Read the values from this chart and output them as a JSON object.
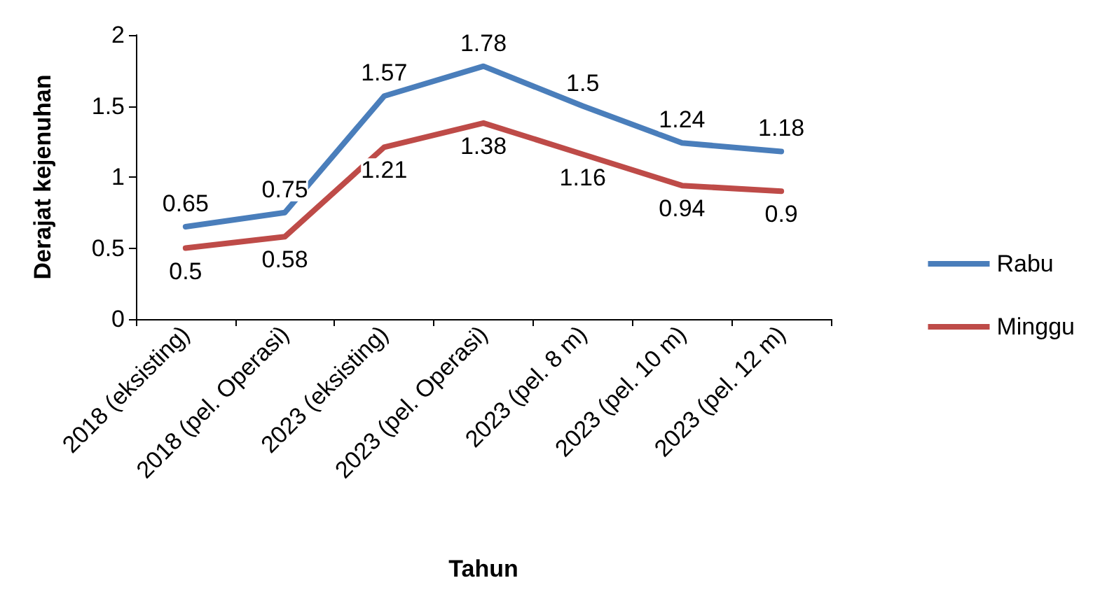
{
  "chart_data": {
    "type": "line",
    "xlabel": "Tahun",
    "ylabel": "Derajat kejenuhan",
    "categories": [
      "2018 (eksisting)",
      "2018 (pel. Operasi)",
      "2023 (eksisting)",
      "2023 (pel. Operasi)",
      "2023 (pel. 8 m)",
      "2023 (pel. 10 m)",
      "2023 (pel. 12 m)"
    ],
    "series": [
      {
        "name": "Rabu",
        "color": "#4a7ebb",
        "values": [
          0.65,
          0.75,
          1.57,
          1.78,
          1.5,
          1.24,
          1.18
        ]
      },
      {
        "name": "Minggu",
        "color": "#be4b48",
        "values": [
          0.5,
          0.58,
          1.21,
          1.38,
          1.16,
          0.94,
          0.9
        ]
      }
    ],
    "ylim": [
      0,
      2
    ],
    "yticks": [
      0,
      0.5,
      1,
      1.5,
      2
    ],
    "grid": false,
    "legend": "right",
    "marker": "none",
    "line_style": "solid",
    "data_labels": true
  }
}
